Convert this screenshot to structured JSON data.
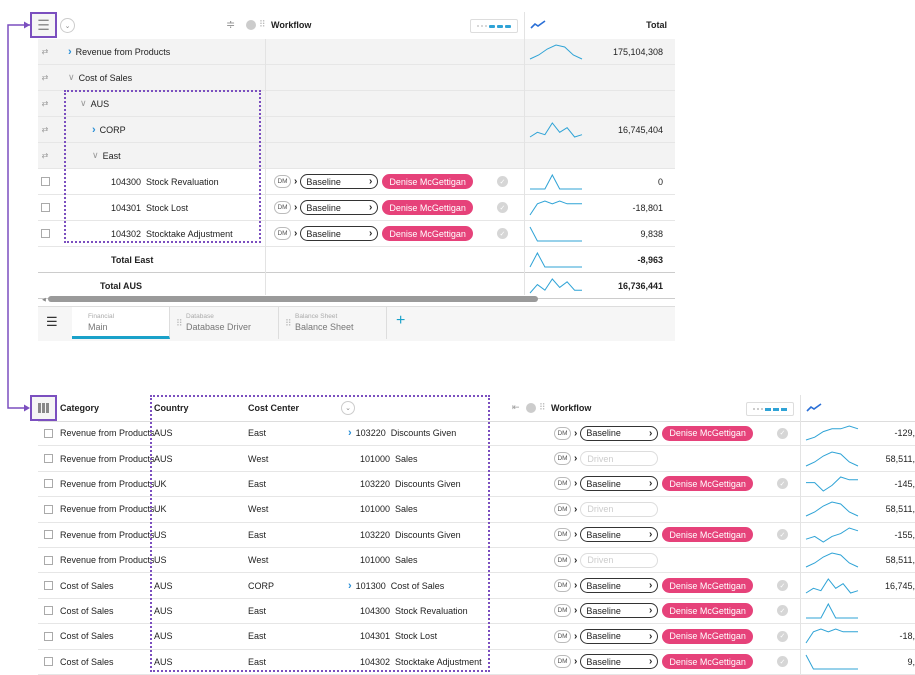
{
  "top": {
    "header": {
      "workflow": "Workflow",
      "total": "Total"
    },
    "rows": [
      {
        "label": "Revenue from Products",
        "type": "group",
        "expanded": false,
        "indent": 0,
        "total": "175,104,308",
        "spark": [
          2,
          4,
          7,
          9,
          8,
          4,
          2
        ]
      },
      {
        "label": "Cost of Sales",
        "type": "group",
        "expanded": true,
        "indent": 0,
        "total": "",
        "spark": null
      },
      {
        "label": "AUS",
        "type": "group",
        "expanded": true,
        "indent": 1,
        "total": "",
        "spark": null
      },
      {
        "label": "CORP",
        "type": "group",
        "expanded": false,
        "indent": 2,
        "total": "16,745,404",
        "spark": [
          2,
          4,
          3,
          8,
          4,
          6,
          2,
          3
        ]
      },
      {
        "label": "East",
        "type": "group",
        "expanded": true,
        "indent": 2,
        "total": "",
        "spark": null
      },
      {
        "code": "104300",
        "label": "Stock Revaluation",
        "type": "leaf",
        "dm": "DM",
        "status": "Baseline",
        "user": "Denise McGettigan",
        "total": "0",
        "spark": [
          4,
          4,
          4,
          9,
          4,
          4,
          4,
          4
        ]
      },
      {
        "code": "104301",
        "label": "Stock Lost",
        "type": "leaf",
        "dm": "DM",
        "status": "Baseline",
        "user": "Denise McGettigan",
        "total": "-18,801",
        "spark": [
          3,
          7,
          8,
          7,
          8,
          7,
          7,
          7
        ]
      },
      {
        "code": "104302",
        "label": "Stocktake Adjustment",
        "type": "leaf",
        "dm": "DM",
        "status": "Baseline",
        "user": "Denise McGettigan",
        "total": "9,838",
        "spark": [
          8,
          2,
          2,
          2,
          2,
          2,
          2,
          2
        ]
      },
      {
        "label": "Total East",
        "type": "total",
        "indent": 3,
        "total": "-8,963",
        "spark": [
          2,
          7,
          2,
          2,
          2,
          2,
          2,
          2
        ]
      },
      {
        "label": "Total AUS",
        "type": "total",
        "indent": 2,
        "total": "16,736,441",
        "spark": [
          2,
          5,
          3,
          7,
          4,
          6,
          3,
          3
        ]
      }
    ]
  },
  "tabs": [
    {
      "small": "Financial",
      "big": "Main",
      "active": true
    },
    {
      "small": "Database",
      "big": "Database Driver",
      "active": false
    },
    {
      "small": "Balance Sheet",
      "big": "Balance Sheet",
      "active": false
    }
  ],
  "bottom": {
    "header": {
      "category": "Category",
      "country": "Country",
      "cost_center": "Cost Center",
      "workflow": "Workflow"
    },
    "rows": [
      {
        "category": "Revenue from Products",
        "country": "AUS",
        "cc": "East",
        "chev": true,
        "code": "103220",
        "label": "Discounts Given",
        "status": "Baseline",
        "user": "Denise McGettigan",
        "total": "-129,",
        "spark": [
          3,
          4,
          6,
          7,
          7,
          8,
          7
        ]
      },
      {
        "category": "Revenue from Products",
        "country": "AUS",
        "cc": "West",
        "chev": false,
        "code": "101000",
        "label": "Sales",
        "status": "Driven",
        "user": "",
        "total": "58,511,",
        "spark": [
          2,
          4,
          7,
          9,
          8,
          4,
          2
        ]
      },
      {
        "category": "Revenue from Products",
        "country": "UK",
        "cc": "East",
        "chev": false,
        "code": "103220",
        "label": "Discounts Given",
        "status": "Baseline",
        "user": "Denise McGettigan",
        "total": "-145,",
        "spark": [
          6,
          6,
          3,
          5,
          8,
          7,
          7
        ]
      },
      {
        "category": "Revenue from Products",
        "country": "UK",
        "cc": "West",
        "chev": false,
        "code": "101000",
        "label": "Sales",
        "status": "Driven",
        "user": "",
        "total": "58,511,",
        "spark": [
          2,
          4,
          7,
          9,
          8,
          4,
          2
        ]
      },
      {
        "category": "Revenue from Products",
        "country": "US",
        "cc": "East",
        "chev": false,
        "code": "103220",
        "label": "Discounts Given",
        "status": "Baseline",
        "user": "Denise McGettigan",
        "total": "-155,",
        "spark": [
          5,
          6,
          4,
          6,
          7,
          9,
          8
        ]
      },
      {
        "category": "Revenue from Products",
        "country": "US",
        "cc": "West",
        "chev": false,
        "code": "101000",
        "label": "Sales",
        "status": "Driven",
        "user": "",
        "total": "58,511,",
        "spark": [
          2,
          4,
          7,
          9,
          8,
          4,
          2
        ]
      },
      {
        "category": "Cost of Sales",
        "country": "AUS",
        "cc": "CORP",
        "chev": true,
        "code": "101300",
        "label": "Cost of Sales",
        "status": "Baseline",
        "user": "Denise McGettigan",
        "total": "16,745,",
        "spark": [
          2,
          4,
          3,
          8,
          4,
          6,
          2,
          3
        ]
      },
      {
        "category": "Cost of Sales",
        "country": "AUS",
        "cc": "East",
        "chev": false,
        "code": "104300",
        "label": "Stock Revaluation",
        "status": "Baseline",
        "user": "Denise McGettigan",
        "total": "",
        "spark": [
          4,
          4,
          4,
          9,
          4,
          4,
          4,
          4
        ]
      },
      {
        "category": "Cost of Sales",
        "country": "AUS",
        "cc": "East",
        "chev": false,
        "code": "104301",
        "label": "Stock Lost",
        "status": "Baseline",
        "user": "Denise McGettigan",
        "total": "-18,",
        "spark": [
          3,
          7,
          8,
          7,
          8,
          7,
          7,
          7
        ]
      },
      {
        "category": "Cost of Sales",
        "country": "AUS",
        "cc": "East",
        "chev": false,
        "code": "104302",
        "label": "Stocktake Adjustment",
        "status": "Baseline",
        "user": "Denise McGettigan",
        "total": "9,",
        "spark": [
          8,
          2,
          2,
          2,
          2,
          2,
          2,
          2
        ]
      }
    ],
    "dm": "DM"
  },
  "colors": {
    "accent": "#7b4fbf",
    "pink": "#e6427a",
    "spark": "#2fa3d6",
    "tab_active": "#1aa1c9"
  }
}
